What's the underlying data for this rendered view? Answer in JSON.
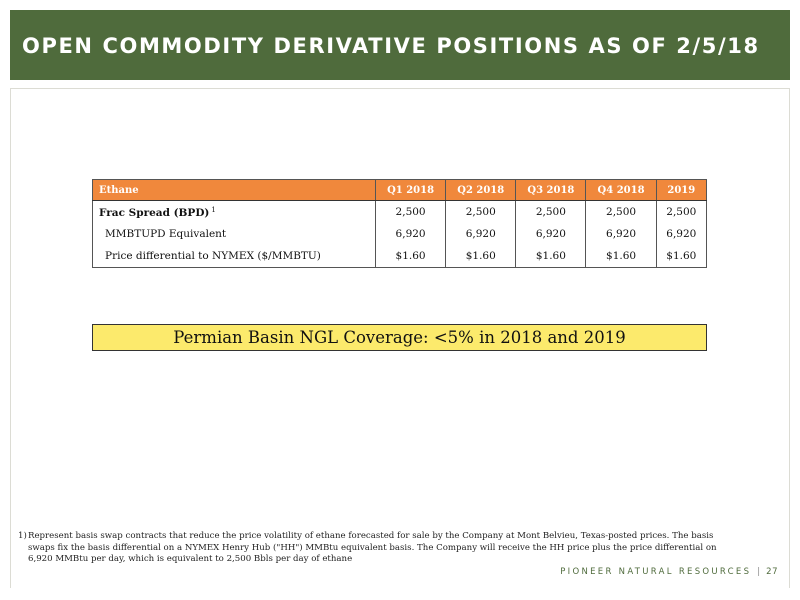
{
  "header": {
    "title": "OPEN COMMODITY DERIVATIVE POSITIONS AS OF 2/5/18"
  },
  "table": {
    "headers": [
      "Ethane",
      "Q1 2018",
      "Q2 2018",
      "Q3 2018",
      "Q4 2018",
      "2019"
    ],
    "rows": [
      {
        "label": "Frac Spread (BPD)",
        "footnote": "1",
        "values": [
          "2,500",
          "2,500",
          "2,500",
          "2,500",
          "2,500"
        ]
      },
      {
        "label": "MMBTUPD Equivalent",
        "values": [
          "6,920",
          "6,920",
          "6,920",
          "6,920",
          "6,920"
        ]
      },
      {
        "label": "Price differential to  NYMEX ($/MMBTU)",
        "values": [
          "$1.60",
          "$1.60",
          "$1.60",
          "$1.60",
          "$1.60"
        ]
      }
    ]
  },
  "coverage": {
    "text": "Permian Basin NGL Coverage: <5% in 2018 and 2019"
  },
  "footnote": {
    "marker": "1)",
    "text": "Represent basis swap contracts that reduce the price volatility of ethane forecasted for sale by the Company at Mont Belvieu, Texas-posted prices. The basis swaps fix the basis differential on a NYMEX Henry Hub (\"HH\") MMBtu equivalent basis. The Company will receive the HH price plus the price differential on 6,920 MMBtu per day, which is equivalent to 2,500 Bbls per day of ethane"
  },
  "footer": {
    "brand": "PIONEER NATURAL RESOURCES",
    "separator": "|",
    "page_number": "27"
  },
  "colors": {
    "header_green": "#4f6b3c",
    "table_header_orange": "#f0883c",
    "coverage_yellow": "#fcea6c"
  }
}
